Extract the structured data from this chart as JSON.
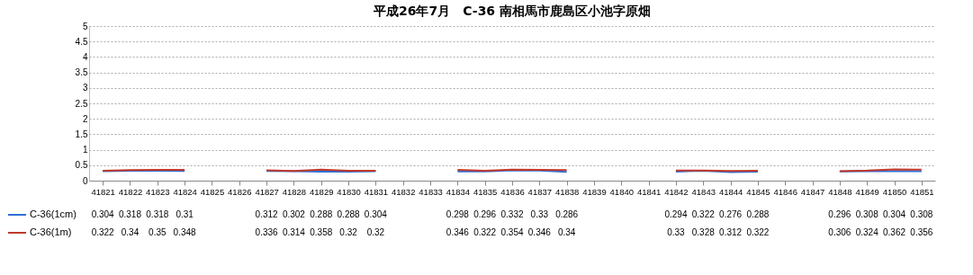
{
  "chart_data": {
    "type": "line",
    "title": "平成26年7月　C-36 南相馬市鹿島区小池字原畑",
    "categories": [
      "41821",
      "41822",
      "41823",
      "41824",
      "41825",
      "41826",
      "41827",
      "41828",
      "41829",
      "41830",
      "41831",
      "41832",
      "41833",
      "41834",
      "41835",
      "41836",
      "41837",
      "41838",
      "41839",
      "41840",
      "41841",
      "41842",
      "41843",
      "41844",
      "41845",
      "41846",
      "41847",
      "41848",
      "41849",
      "41850",
      "41851"
    ],
    "series": [
      {
        "name": "C-36(1cm)",
        "color": "#2f6fd8",
        "values": [
          0.304,
          0.318,
          0.318,
          0.31,
          null,
          null,
          0.312,
          0.302,
          0.288,
          0.288,
          0.304,
          null,
          null,
          0.298,
          0.296,
          0.332,
          0.33,
          0.286,
          null,
          null,
          null,
          0.294,
          0.322,
          0.276,
          0.288,
          null,
          null,
          0.296,
          0.308,
          0.304,
          0.308
        ],
        "value_labels": [
          "0.304",
          "0.318",
          "0.318",
          "0.31",
          null,
          null,
          "0.312",
          "0.302",
          "0.288",
          "0.288",
          "0.304",
          null,
          null,
          "0.298",
          "0.296",
          "0.332",
          "0.33",
          "0.286",
          null,
          null,
          null,
          "0.294",
          "0.322",
          "0.276",
          "0.288",
          null,
          null,
          "0.296",
          "0.308",
          "0.304",
          "0.308"
        ]
      },
      {
        "name": "C-36(1m)",
        "color": "#c0392b",
        "values": [
          0.322,
          0.34,
          0.35,
          0.348,
          null,
          null,
          0.336,
          0.314,
          0.358,
          0.32,
          0.32,
          null,
          null,
          0.346,
          0.322,
          0.354,
          0.346,
          0.34,
          null,
          null,
          null,
          0.33,
          0.328,
          0.312,
          0.322,
          null,
          null,
          0.306,
          0.324,
          0.362,
          0.356
        ],
        "value_labels": [
          "0.322",
          "0.34",
          "0.35",
          "0.348",
          null,
          null,
          "0.336",
          "0.314",
          "0.358",
          "0.32",
          "0.32",
          null,
          null,
          "0.346",
          "0.322",
          "0.354",
          "0.346",
          "0.34",
          null,
          null,
          null,
          "0.33",
          "0.328",
          "0.312",
          "0.322",
          null,
          null,
          "0.306",
          "0.324",
          "0.362",
          "0.356"
        ]
      }
    ],
    "ylim": [
      0,
      5
    ],
    "yticks": [
      0,
      0.5,
      1,
      1.5,
      2,
      2.5,
      3,
      3.5,
      4,
      4.5,
      5
    ],
    "grid": "y",
    "legend": "bottom"
  }
}
